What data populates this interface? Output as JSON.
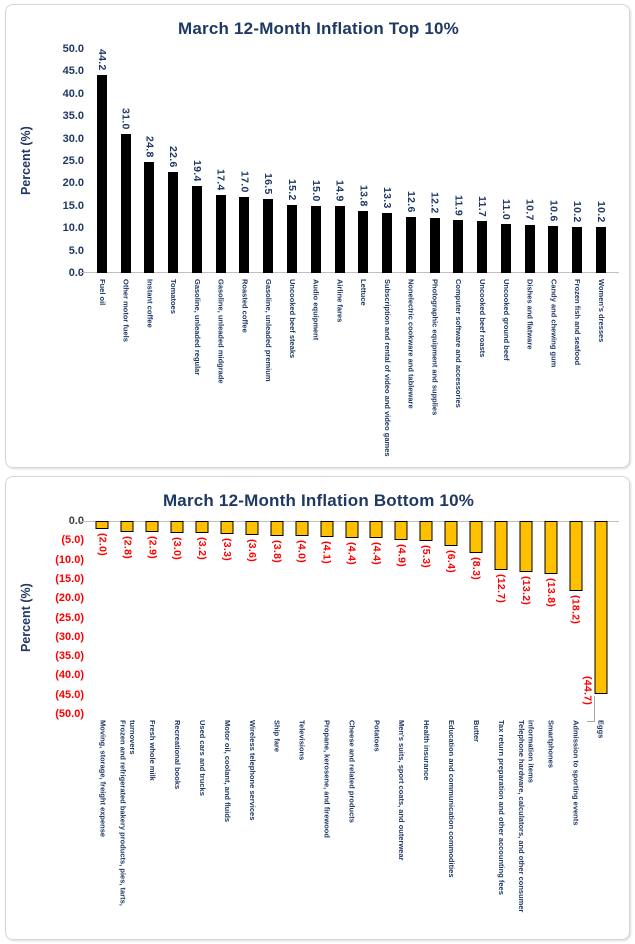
{
  "colors": {
    "navy": "#1F3864",
    "red": "#FF0000",
    "gold": "#FFC000",
    "black": "#000000",
    "gridline": "#BFBFBF",
    "zero_tick_dark": "#404040"
  },
  "chart_data": [
    {
      "type": "bar",
      "direction": "up",
      "title": "March 12-Month Inflation Top 10%",
      "y_axis_title": "Percent (%)",
      "ylim": [
        0,
        50
      ],
      "tick_step": 5,
      "grid": "zero-line-only",
      "tick_labels": [
        "50.0",
        "45.0",
        "40.0",
        "35.0",
        "30.0",
        "25.0",
        "20.0",
        "15.0",
        "10.0",
        "5.0",
        "0.0"
      ],
      "tick_label_color": "#1F3864",
      "bar_color": "#000000",
      "bar_border_color": "#000000",
      "value_label_color": "#1F3864",
      "categories": [
        "Fuel oil",
        "Other motor fuels",
        "Instant coffee",
        "Tomatoes",
        "Gasoline, unleaded regular",
        "Gasoline, unleaded midgrade",
        "Roasted coffee",
        "Gasoline, unleaded premium",
        "Uncooked beef steaks",
        "Audio equipment",
        "Airline fares",
        "Lettuce",
        "Subscription and rental of video and video games",
        "Nonelectric cookware and tableware",
        "Photographic equipment and supplies",
        "Computer software and accessories",
        "Uncooked beef roasts",
        "Uncooked ground beef",
        "Dishes and flatware",
        "Candy and chewing gum",
        "Frozen fish and seafood",
        "Women's dresses"
      ],
      "values": [
        44.2,
        31.0,
        24.8,
        22.6,
        19.4,
        17.4,
        17.0,
        16.5,
        15.2,
        15.0,
        14.9,
        13.8,
        13.3,
        12.6,
        12.2,
        11.9,
        11.7,
        11.0,
        10.7,
        10.6,
        10.2,
        10.2
      ],
      "value_labels": [
        "44.2",
        "31.0",
        "24.8",
        "22.6",
        "19.4",
        "17.4",
        "17.0",
        "16.5",
        "15.2",
        "15.0",
        "14.9",
        "13.8",
        "13.3",
        "12.6",
        "12.2",
        "11.9",
        "11.7",
        "11.0",
        "10.7",
        "10.6",
        "10.2",
        "10.2"
      ]
    },
    {
      "type": "bar",
      "direction": "down",
      "title": "March 12-Month Inflation Bottom 10%",
      "y_axis_title": "Percent (%)",
      "ylim": [
        -50,
        0
      ],
      "tick_step": 5,
      "grid": "zero-line-only",
      "tick_labels": [
        "0.0",
        "(5.0)",
        "(10.0)",
        "(15.0)",
        "(20.0)",
        "(25.0)",
        "(30.0)",
        "(35.0)",
        "(40.0)",
        "(45.0)",
        "(50.0)"
      ],
      "tick_label_color": "#FF0000",
      "tick_label_colors": [
        "#404040",
        "#FF0000",
        "#FF0000",
        "#FF0000",
        "#FF0000",
        "#FF0000",
        "#FF0000",
        "#FF0000",
        "#FF0000",
        "#FF0000",
        "#FF0000"
      ],
      "bar_color": "#FFC000",
      "bar_border_color": "#000000",
      "value_label_color": "#FF0000",
      "callout_index": 20,
      "categories": [
        "Moving, storage, freight expense",
        "Frozen and refrigerated bakery products, pies, tarts, turnovers",
        "Fresh whole milk",
        "Recreational books",
        "Used cars and trucks",
        "Motor oil, coolant, and fluids",
        "Wireless telephone services",
        "Ship fare",
        "Televisions",
        "Propane, kerosene, and firewood",
        "Cheese and related products",
        "Potatoes",
        "Men's suits, sport coats, and outerwear",
        "Health insurance",
        "Education and communication commodities",
        "Butter",
        "Tax return preparation and other accounting fees",
        "Telephone hardware, calculators, and other consumer information items",
        "Smartphones",
        "Admission to sporting events",
        "Eggs"
      ],
      "values": [
        -2.0,
        -2.8,
        -2.9,
        -3.0,
        -3.2,
        -3.3,
        -3.6,
        -3.8,
        -4.0,
        -4.1,
        -4.4,
        -4.4,
        -4.9,
        -5.3,
        -6.4,
        -8.3,
        -12.7,
        -13.2,
        -13.8,
        -18.2,
        -44.7
      ],
      "value_labels": [
        "(2.0)",
        "(2.8)",
        "(2.9)",
        "(3.0)",
        "(3.2)",
        "(3.3)",
        "(3.6)",
        "(3.8)",
        "(4.0)",
        "(4.1)",
        "(4.4)",
        "(4.4)",
        "(4.9)",
        "(5.3)",
        "(6.4)",
        "(8.3)",
        "(12.7)",
        "(13.2)",
        "(13.8)",
        "(18.2)",
        "(44.7)"
      ]
    }
  ]
}
